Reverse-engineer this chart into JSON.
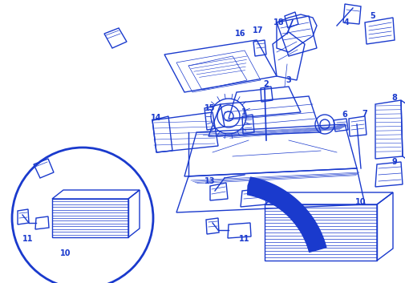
{
  "bg_color": "#ffffff",
  "draw_color": "#1a3acd",
  "arrow_color": "#1a3acd",
  "lw_main": 1.0,
  "lw_thick": 1.5,
  "lw_thin": 0.5,
  "figsize": [
    5.06,
    3.53
  ],
  "dpi": 100
}
